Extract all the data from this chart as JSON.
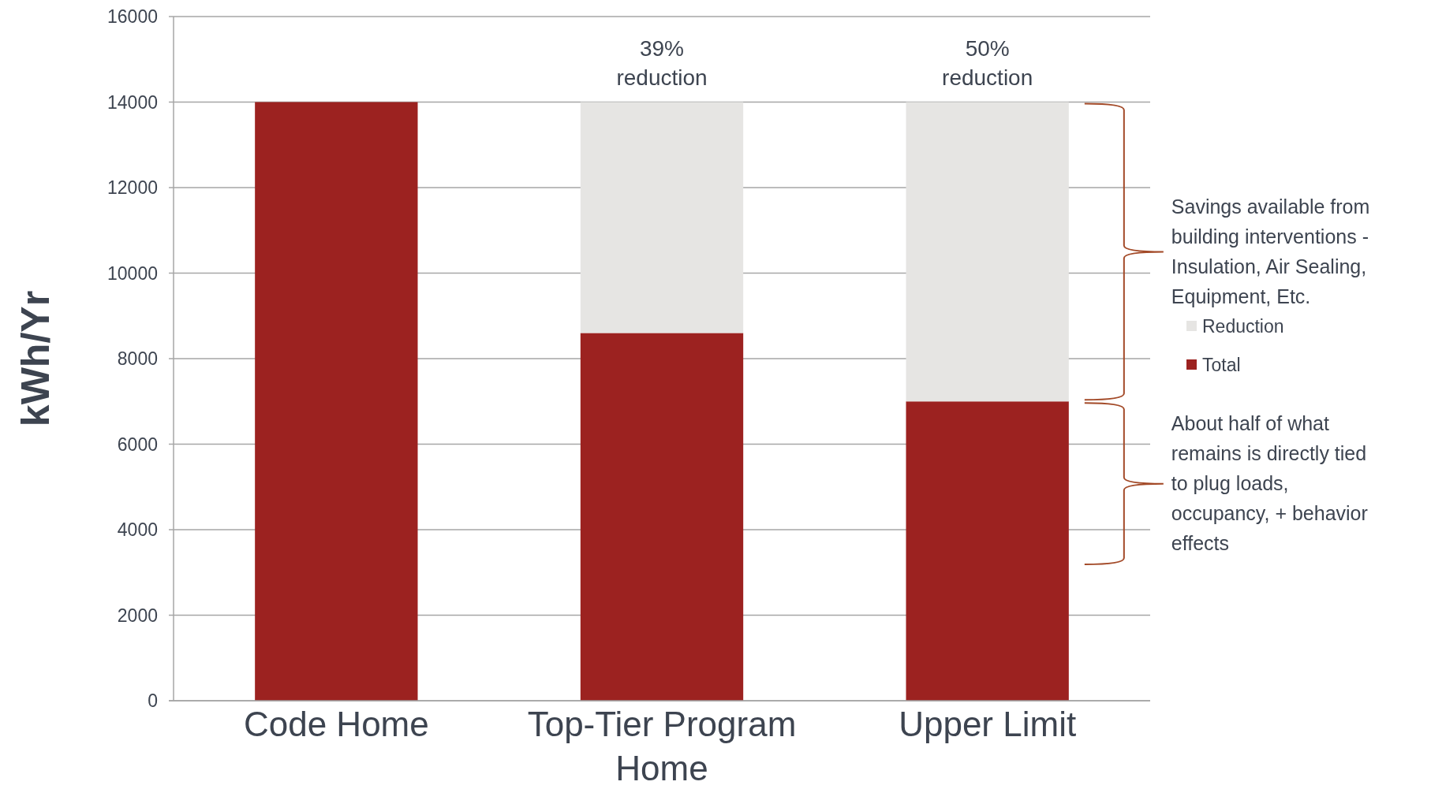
{
  "chart_data": {
    "type": "bar",
    "stacked": true,
    "categories": [
      "Code Home",
      "Top-Tier Program Home",
      "Upper Limit"
    ],
    "series": [
      {
        "name": "Total",
        "color": "#9c2220",
        "values": [
          14000,
          8600,
          7000
        ]
      },
      {
        "name": "Reduction",
        "color": "#e6e5e3",
        "values": [
          0,
          5400,
          7000
        ]
      }
    ],
    "ylabel": "kWh/Yr",
    "ylim": [
      0,
      16000
    ],
    "yticks": [
      0,
      2000,
      4000,
      6000,
      8000,
      10000,
      12000,
      14000,
      16000
    ],
    "grid": "y",
    "legend": "right",
    "annotations": [
      {
        "text": "39% reduction",
        "x": "Top-Tier Program Home",
        "y": 14000
      },
      {
        "text": "50% reduction",
        "x": "Upper Limit",
        "y": 14000
      },
      "Savings available from building interventions - Insulation, Air Sealing, Equipment, Etc.",
      "About half of what remains is directly tied to plug loads, occupancy, + behavior effects"
    ]
  }
}
